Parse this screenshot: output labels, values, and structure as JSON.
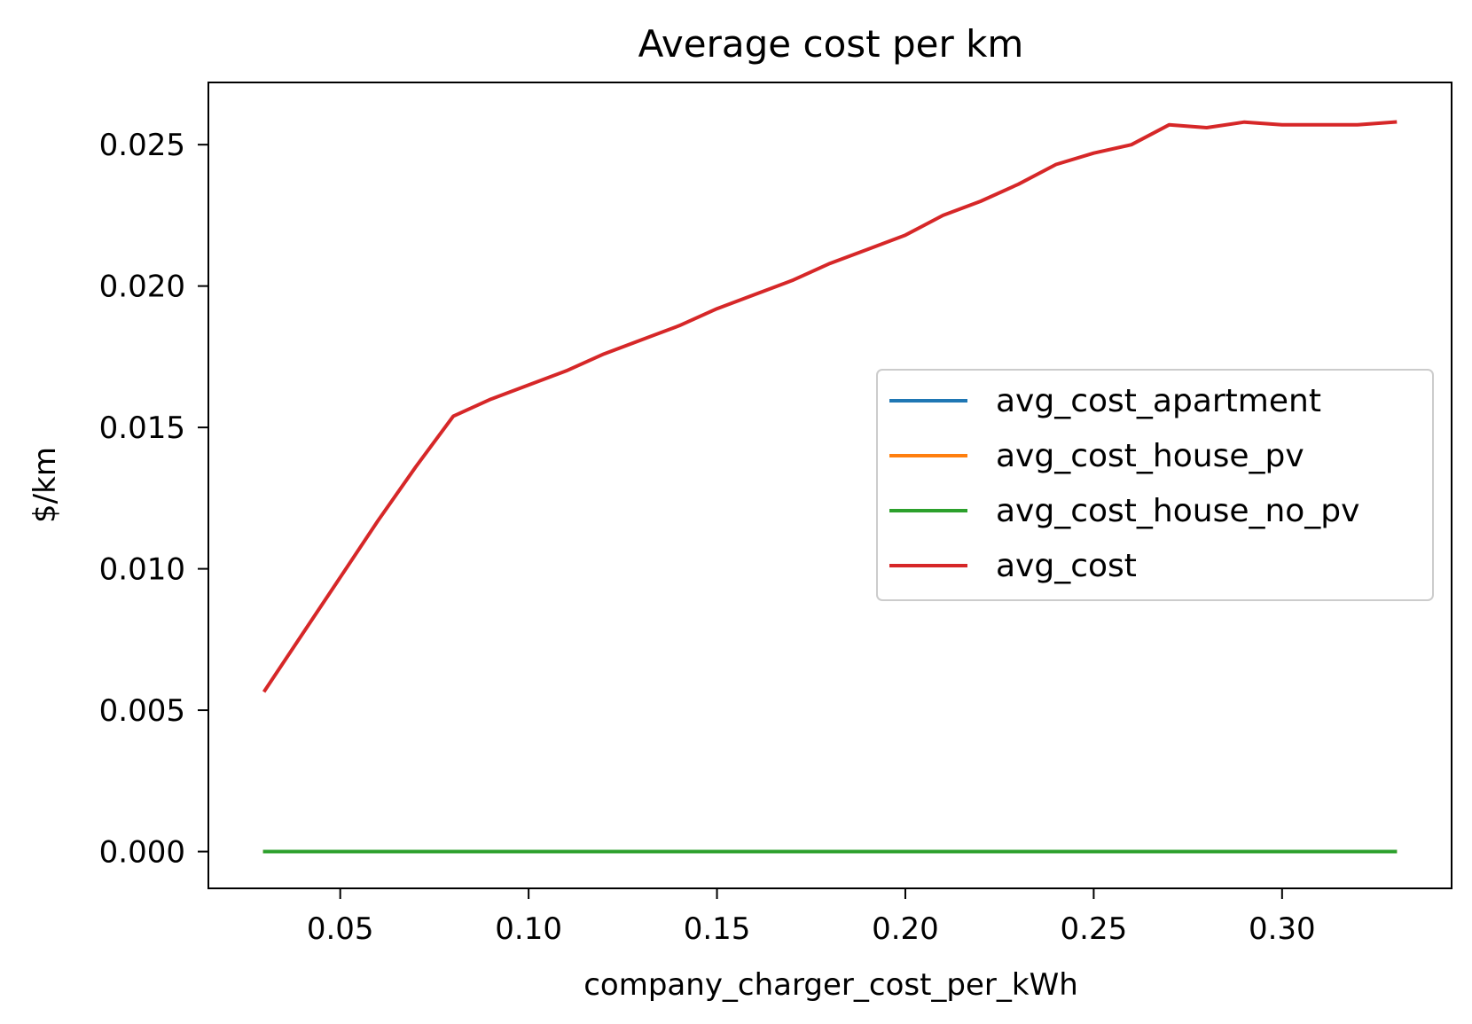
{
  "chart_data": {
    "type": "line",
    "title": "Average cost per km",
    "xlabel": "company_charger_cost_per_kWh",
    "ylabel": "$/km",
    "xlim": [
      0.015,
      0.345
    ],
    "ylim": [
      -0.0013,
      0.0272
    ],
    "xticks": [
      0.05,
      0.1,
      0.15,
      0.2,
      0.25,
      0.3
    ],
    "xtick_labels": [
      "0.05",
      "0.10",
      "0.15",
      "0.20",
      "0.25",
      "0.30"
    ],
    "yticks": [
      0.0,
      0.005,
      0.01,
      0.015,
      0.02,
      0.025
    ],
    "ytick_labels": [
      "0.000",
      "0.005",
      "0.010",
      "0.015",
      "0.020",
      "0.025"
    ],
    "grid": false,
    "legend_position": "center-right",
    "x": [
      0.03,
      0.04,
      0.05,
      0.06,
      0.07,
      0.08,
      0.09,
      0.1,
      0.11,
      0.12,
      0.13,
      0.14,
      0.15,
      0.16,
      0.17,
      0.18,
      0.19,
      0.2,
      0.21,
      0.22,
      0.23,
      0.24,
      0.25,
      0.26,
      0.27,
      0.28,
      0.29,
      0.3,
      0.31,
      0.32,
      0.33
    ],
    "series": [
      {
        "name": "avg_cost_apartment",
        "color": "#1f77b4",
        "values": [
          0,
          0,
          0,
          0,
          0,
          0,
          0,
          0,
          0,
          0,
          0,
          0,
          0,
          0,
          0,
          0,
          0,
          0,
          0,
          0,
          0,
          0,
          0,
          0,
          0,
          0,
          0,
          0,
          0,
          0,
          0
        ]
      },
      {
        "name": "avg_cost_house_pv",
        "color": "#ff7f0e",
        "values": [
          0,
          0,
          0,
          0,
          0,
          0,
          0,
          0,
          0,
          0,
          0,
          0,
          0,
          0,
          0,
          0,
          0,
          0,
          0,
          0,
          0,
          0,
          0,
          0,
          0,
          0,
          0,
          0,
          0,
          0,
          0
        ]
      },
      {
        "name": "avg_cost_house_no_pv",
        "color": "#2ca02c",
        "values": [
          0,
          0,
          0,
          0,
          0,
          0,
          0,
          0,
          0,
          0,
          0,
          0,
          0,
          0,
          0,
          0,
          0,
          0,
          0,
          0,
          0,
          0,
          0,
          0,
          0,
          0,
          0,
          0,
          0,
          0,
          0
        ]
      },
      {
        "name": "avg_cost",
        "color": "#d62728",
        "values": [
          0.0057,
          0.0077,
          0.0097,
          0.0117,
          0.0136,
          0.0154,
          0.016,
          0.0165,
          0.017,
          0.0176,
          0.0181,
          0.0186,
          0.0192,
          0.0197,
          0.0202,
          0.0208,
          0.0213,
          0.0218,
          0.0225,
          0.023,
          0.0236,
          0.0243,
          0.0247,
          0.025,
          0.0257,
          0.0256,
          0.0258,
          0.0257,
          0.0257,
          0.0257,
          0.0258
        ]
      }
    ]
  }
}
